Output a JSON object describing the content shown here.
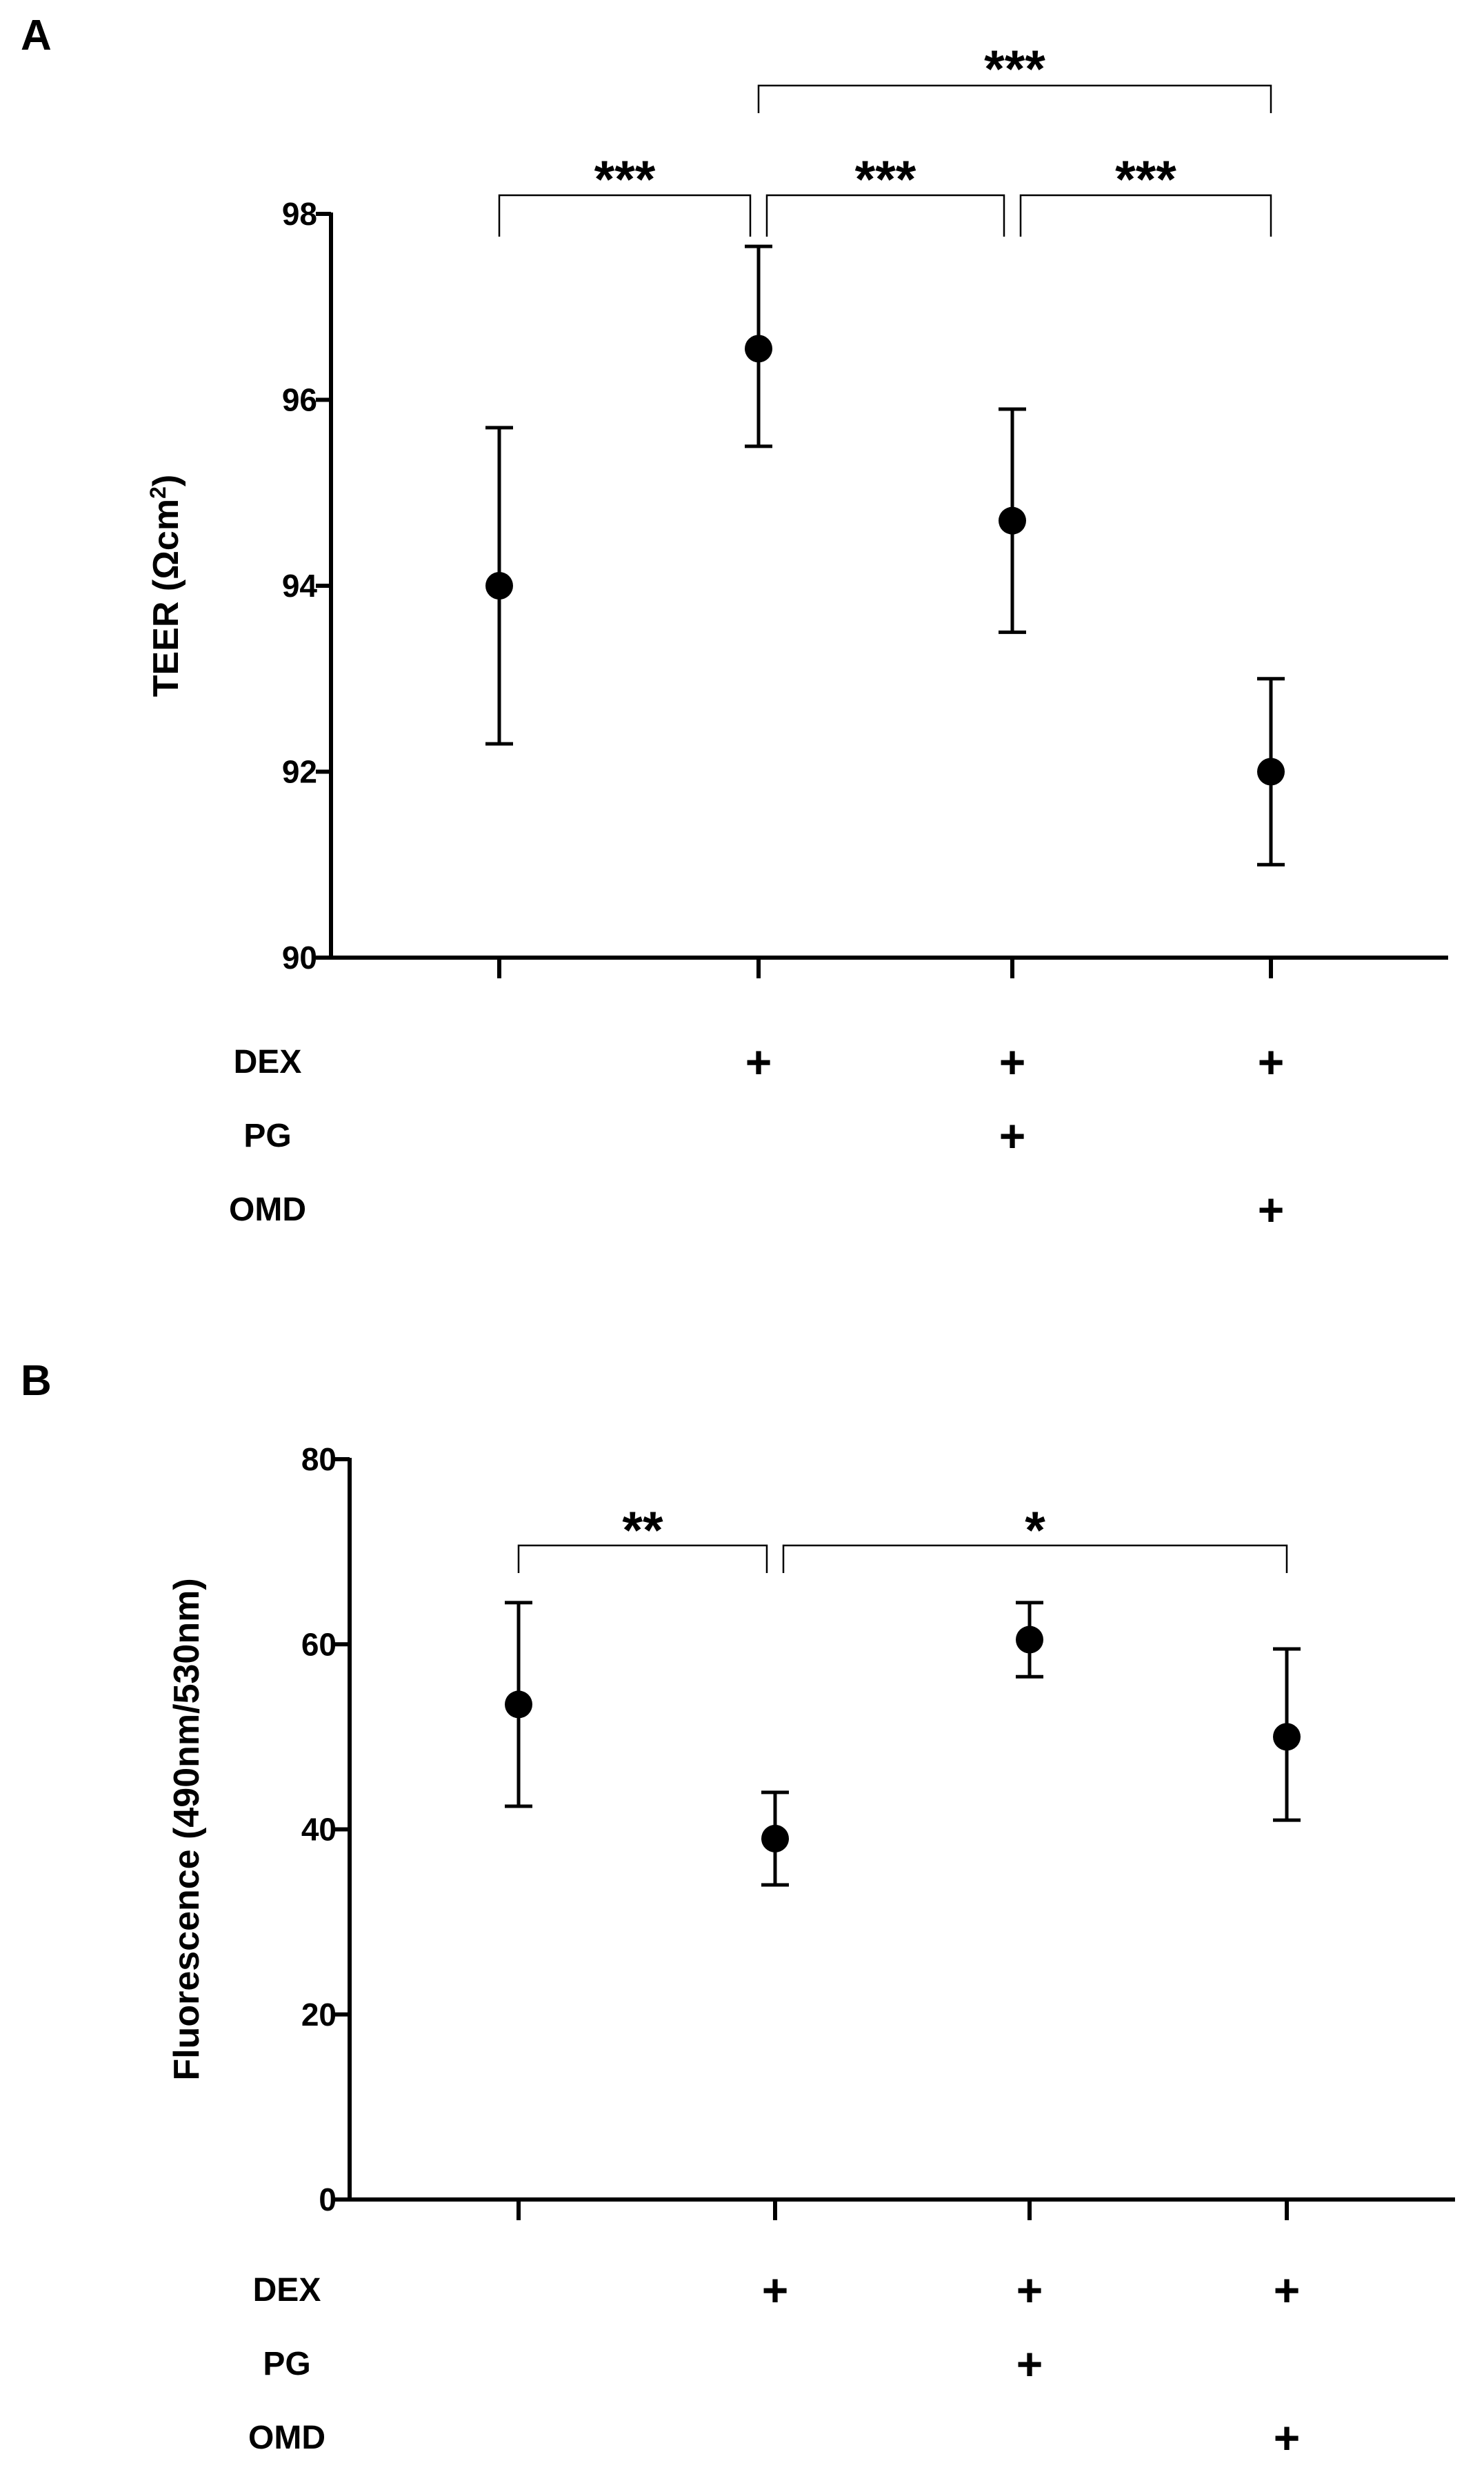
{
  "chart_data": [
    {
      "panel": "A",
      "type": "scatter",
      "ylabel_main": "TEER (Ωcm",
      "ylabel_sup": "2",
      "ylabel_end": ")",
      "ylim": [
        90,
        98
      ],
      "yticks": [
        90,
        92,
        94,
        96,
        98
      ],
      "groups": [
        "1",
        "2",
        "3",
        "4"
      ],
      "means": [
        94.0,
        96.55,
        94.7,
        92.0
      ],
      "err_low": [
        92.3,
        95.5,
        93.5,
        91.0
      ],
      "err_high": [
        95.7,
        97.65,
        95.9,
        93.0
      ],
      "treatments": [
        {
          "name": "DEX",
          "marks": [
            "",
            "+",
            "+",
            "+"
          ]
        },
        {
          "name": "PG",
          "marks": [
            "",
            "",
            "+",
            ""
          ]
        },
        {
          "name": "OMD",
          "marks": [
            "",
            "",
            "",
            "+"
          ]
        }
      ],
      "significance": [
        {
          "from": 0,
          "to": 1,
          "label": "***"
        },
        {
          "from": 1,
          "to": 2,
          "label": "***"
        },
        {
          "from": 2,
          "to": 3,
          "label": "***"
        },
        {
          "from": 1,
          "to": 3,
          "label": "***"
        }
      ]
    },
    {
      "panel": "B",
      "type": "scatter",
      "ylabel_main": "Fluorescence  (490nm/530nm)",
      "ylabel_sup": "",
      "ylabel_end": "",
      "ylim": [
        0,
        80
      ],
      "yticks": [
        0,
        20,
        40,
        60,
        80
      ],
      "groups": [
        "1",
        "2",
        "3",
        "4"
      ],
      "means": [
        53.5,
        39.0,
        60.5,
        50.0
      ],
      "err_low": [
        42.5,
        34.0,
        56.5,
        41.0
      ],
      "err_high": [
        64.5,
        44.0,
        64.5,
        59.5
      ],
      "treatments": [
        {
          "name": "DEX",
          "marks": [
            "",
            "+",
            "+",
            "+"
          ]
        },
        {
          "name": "PG",
          "marks": [
            "",
            "",
            "+",
            ""
          ]
        },
        {
          "name": "OMD",
          "marks": [
            "",
            "",
            "",
            "+"
          ]
        }
      ],
      "significance": [
        {
          "from": 0,
          "to": 1,
          "label": "**"
        },
        {
          "from": 1,
          "to": 3,
          "label": "*"
        }
      ]
    }
  ]
}
